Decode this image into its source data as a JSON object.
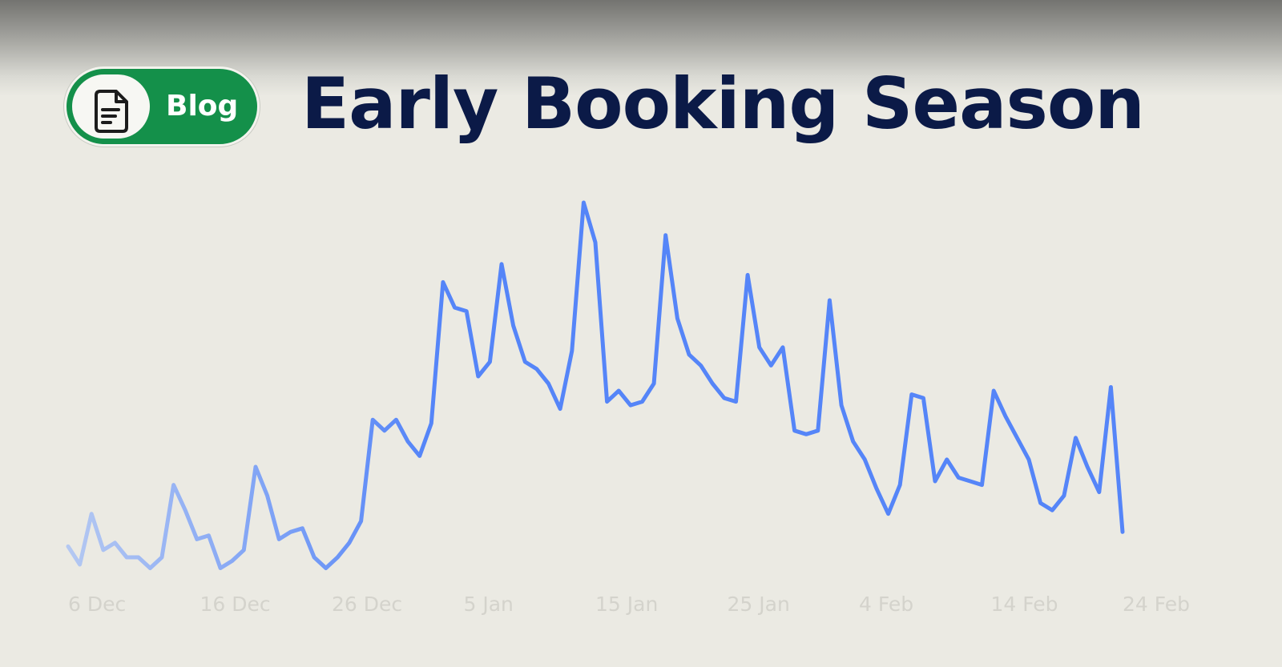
{
  "badge": {
    "label": "Blog",
    "icon": "document-icon",
    "color": "#14904a"
  },
  "title": "Early Booking Season",
  "chart_data": {
    "type": "line",
    "title": "Early Booking Season",
    "xlabel": "",
    "ylabel": "",
    "x_ticks": [
      "6 Dec",
      "16 Dec",
      "26 Dec",
      "5 Jan",
      "15 Jan",
      "25 Jan",
      "4 Feb",
      "14 Feb",
      "24 Feb"
    ],
    "x_range": [
      "6 Dec",
      "24 Feb"
    ],
    "y_axis_visible": false,
    "ylim": [
      0,
      100
    ],
    "grid": "vertical",
    "line_color": "#5585f8",
    "line_color_start": "#b4c8f2",
    "series": [
      {
        "values": [
          5,
          0,
          14,
          4,
          6,
          2,
          2,
          -1,
          2,
          22,
          15,
          7,
          8,
          -1,
          1,
          4,
          27,
          19,
          7,
          9,
          10,
          2,
          -1,
          2,
          6,
          12,
          40,
          37,
          40,
          34,
          30,
          39,
          78,
          71,
          70,
          52,
          56,
          83,
          66,
          56,
          54,
          50,
          43,
          59,
          100,
          89,
          45,
          48,
          44,
          45,
          50,
          91,
          68,
          58,
          55,
          50,
          46,
          45,
          80,
          60,
          55,
          60,
          37,
          36,
          37,
          73,
          44,
          34,
          29,
          21,
          14,
          22,
          47,
          46,
          23,
          29,
          24,
          23,
          22,
          48,
          41,
          35,
          29,
          17,
          15,
          19,
          35,
          27,
          20,
          49,
          9
        ]
      }
    ]
  }
}
